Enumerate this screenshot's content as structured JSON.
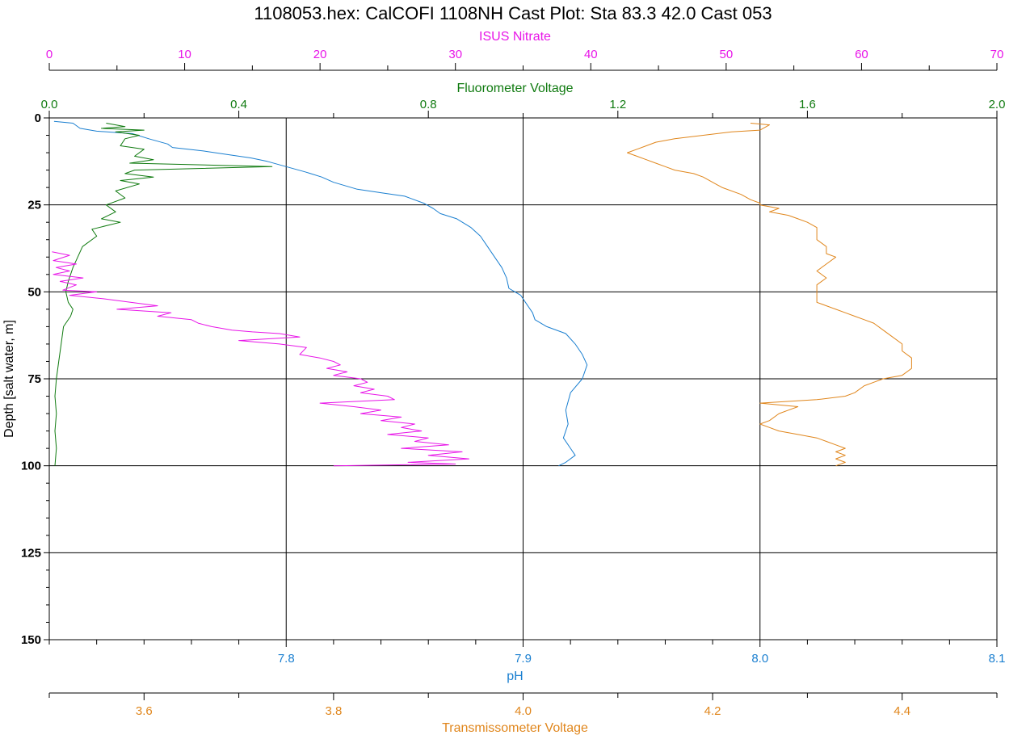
{
  "chart_data": {
    "type": "line",
    "title": "1108053.hex: CalCOFI 1108NH Cast Plot:  Sta 83.3  42.0  Cast 053",
    "y_axis": {
      "label": "Depth [salt water, m]",
      "range": [
        0,
        150
      ],
      "inverted": true,
      "ticks": [
        0,
        25,
        50,
        75,
        100,
        125,
        150
      ],
      "tick_labels": [
        "0",
        "25",
        "50",
        "75",
        "100",
        "125",
        "150"
      ],
      "gridlines": [
        25,
        50,
        75,
        100,
        125
      ]
    },
    "x_axes": [
      {
        "key": "nitrate",
        "label": "ISUS Nitrate",
        "position": "top",
        "color": "#e815e8",
        "range": [
          0,
          70
        ],
        "ticks": [
          0,
          10,
          20,
          30,
          40,
          50,
          60,
          70
        ],
        "tick_labels": [
          "0",
          "10",
          "20",
          "30",
          "40",
          "50",
          "60",
          "70"
        ]
      },
      {
        "key": "fluor",
        "label": "Fluorometer Voltage",
        "position": "top",
        "color": "#0f7a0f",
        "range": [
          0,
          2
        ],
        "ticks": [
          0,
          0.4,
          0.8,
          1.2,
          1.6,
          2.0
        ],
        "tick_labels": [
          "0.0",
          "0.4",
          "0.8",
          "1.2",
          "1.6",
          "2.0"
        ]
      },
      {
        "key": "ph",
        "label": "pH",
        "position": "bottom",
        "color": "#1a7fd0",
        "range": [
          7.7,
          8.1
        ],
        "ticks": [
          7.8,
          7.9,
          8.0,
          8.1
        ],
        "tick_labels": [
          "7.8",
          "7.9",
          "8.0",
          "8.1"
        ],
        "gridlines": [
          7.8,
          7.9,
          8.0
        ]
      },
      {
        "key": "trans",
        "label": "Transmissometer Voltage",
        "position": "bottom",
        "color": "#e0861c",
        "range": [
          3.5,
          4.5
        ],
        "ticks": [
          3.6,
          3.8,
          4.0,
          4.2,
          4.4
        ],
        "tick_labels": [
          "3.6",
          "3.8",
          "4.0",
          "4.2",
          "4.4"
        ]
      }
    ],
    "series": [
      {
        "axis": "ph",
        "color": "#1a7fd0",
        "points": [
          [
            7.702,
            1
          ],
          [
            7.71,
            1.5
          ],
          [
            7.713,
            3
          ],
          [
            7.72,
            3.8
          ],
          [
            7.735,
            4.5
          ],
          [
            7.742,
            6
          ],
          [
            7.75,
            7.5
          ],
          [
            7.752,
            8.5
          ],
          [
            7.765,
            9.5
          ],
          [
            7.775,
            10.5
          ],
          [
            7.785,
            11.5
          ],
          [
            7.792,
            12.5
          ],
          [
            7.8,
            14
          ],
          [
            7.808,
            15.5
          ],
          [
            7.815,
            17
          ],
          [
            7.82,
            18.5
          ],
          [
            7.83,
            20.5
          ],
          [
            7.84,
            21.5
          ],
          [
            7.85,
            22.5
          ],
          [
            7.858,
            24.5
          ],
          [
            7.862,
            26
          ],
          [
            7.865,
            27.5
          ],
          [
            7.872,
            29
          ],
          [
            7.878,
            31.5
          ],
          [
            7.882,
            34
          ],
          [
            7.885,
            37
          ],
          [
            7.888,
            40
          ],
          [
            7.891,
            43
          ],
          [
            7.893,
            46
          ],
          [
            7.894,
            49
          ],
          [
            7.899,
            51
          ],
          [
            7.901,
            53
          ],
          [
            7.904,
            56
          ],
          [
            7.905,
            58
          ],
          [
            7.91,
            60
          ],
          [
            7.918,
            62
          ],
          [
            7.922,
            65
          ],
          [
            7.925,
            68
          ],
          [
            7.927,
            71
          ],
          [
            7.925,
            75
          ],
          [
            7.92,
            79
          ],
          [
            7.918,
            84
          ],
          [
            7.919,
            88
          ],
          [
            7.917,
            92
          ],
          [
            7.92,
            95
          ],
          [
            7.922,
            97
          ],
          [
            7.918,
            99
          ],
          [
            7.915,
            100
          ]
        ]
      },
      {
        "axis": "fluor",
        "color": "#0f7a0f",
        "points": [
          [
            0.12,
            1.5
          ],
          [
            0.16,
            2.5
          ],
          [
            0.11,
            3
          ],
          [
            0.2,
            3.5
          ],
          [
            0.14,
            4
          ],
          [
            0.19,
            5
          ],
          [
            0.16,
            6
          ],
          [
            0.15,
            8
          ],
          [
            0.2,
            9
          ],
          [
            0.18,
            11
          ],
          [
            0.22,
            12
          ],
          [
            0.17,
            13
          ],
          [
            0.47,
            14
          ],
          [
            0.18,
            15
          ],
          [
            0.16,
            16
          ],
          [
            0.22,
            17
          ],
          [
            0.15,
            18
          ],
          [
            0.19,
            19
          ],
          [
            0.14,
            21
          ],
          [
            0.16,
            23
          ],
          [
            0.12,
            25
          ],
          [
            0.14,
            27
          ],
          [
            0.11,
            29
          ],
          [
            0.15,
            30
          ],
          [
            0.09,
            32
          ],
          [
            0.1,
            34
          ],
          [
            0.07,
            37
          ],
          [
            0.06,
            40
          ],
          [
            0.05,
            43
          ],
          [
            0.04,
            47
          ],
          [
            0.035,
            50
          ],
          [
            0.04,
            53
          ],
          [
            0.05,
            55
          ],
          [
            0.045,
            57
          ],
          [
            0.03,
            60
          ],
          [
            0.025,
            65
          ],
          [
            0.02,
            70
          ],
          [
            0.015,
            75
          ],
          [
            0.012,
            80
          ],
          [
            0.015,
            85
          ],
          [
            0.012,
            90
          ],
          [
            0.015,
            95
          ],
          [
            0.012,
            100
          ]
        ]
      },
      {
        "axis": "nitrate",
        "color": "#e815e8",
        "points": [
          [
            0.2,
            38.5
          ],
          [
            1.5,
            39.5
          ],
          [
            0.3,
            41
          ],
          [
            2.0,
            42
          ],
          [
            0.5,
            43
          ],
          [
            1.5,
            44
          ],
          [
            0.3,
            45
          ],
          [
            2.5,
            46
          ],
          [
            0.8,
            47
          ],
          [
            2.0,
            48
          ],
          [
            1.0,
            49.5
          ],
          [
            3.5,
            50
          ],
          [
            1.5,
            51
          ],
          [
            4.0,
            52
          ],
          [
            6.0,
            53
          ],
          [
            8.0,
            54
          ],
          [
            5.0,
            55
          ],
          [
            9.0,
            56
          ],
          [
            8.0,
            57
          ],
          [
            10.5,
            58
          ],
          [
            11.0,
            59
          ],
          [
            12.0,
            60
          ],
          [
            13.5,
            61
          ],
          [
            15.0,
            61.5
          ],
          [
            17.0,
            62
          ],
          [
            18.5,
            63
          ],
          [
            14.0,
            64
          ],
          [
            17.0,
            65
          ],
          [
            19.0,
            66
          ],
          [
            18.5,
            68
          ],
          [
            20.0,
            69
          ],
          [
            21.0,
            70
          ],
          [
            21.5,
            71
          ],
          [
            20.5,
            72
          ],
          [
            22.0,
            73
          ],
          [
            21.0,
            74
          ],
          [
            23.0,
            75
          ],
          [
            23.5,
            76
          ],
          [
            22.5,
            77
          ],
          [
            24.0,
            78
          ],
          [
            23.0,
            79
          ],
          [
            25.0,
            80
          ],
          [
            25.5,
            81
          ],
          [
            20.0,
            82
          ],
          [
            22.5,
            83
          ],
          [
            24.5,
            84
          ],
          [
            23.0,
            85
          ],
          [
            26.0,
            86
          ],
          [
            24.5,
            87
          ],
          [
            27.0,
            88
          ],
          [
            26.0,
            89
          ],
          [
            27.5,
            90
          ],
          [
            25.0,
            91
          ],
          [
            28.0,
            92
          ],
          [
            27.0,
            93
          ],
          [
            29.5,
            94
          ],
          [
            26.0,
            95
          ],
          [
            30.5,
            96
          ],
          [
            28.0,
            97
          ],
          [
            31.0,
            98
          ],
          [
            26.5,
            99
          ],
          [
            30.0,
            99.5
          ],
          [
            21.0,
            100
          ]
        ]
      },
      {
        "axis": "trans",
        "color": "#e0861c",
        "points": [
          [
            4.24,
            1.5
          ],
          [
            4.26,
            2
          ],
          [
            4.25,
            3.5
          ],
          [
            4.22,
            4
          ],
          [
            4.19,
            5
          ],
          [
            4.16,
            6
          ],
          [
            4.14,
            7
          ],
          [
            4.13,
            8
          ],
          [
            4.12,
            9
          ],
          [
            4.11,
            10
          ],
          [
            4.12,
            11
          ],
          [
            4.13,
            12
          ],
          [
            4.14,
            13
          ],
          [
            4.15,
            14
          ],
          [
            4.16,
            15
          ],
          [
            4.18,
            16
          ],
          [
            4.19,
            17
          ],
          [
            4.2,
            18.5
          ],
          [
            4.21,
            20
          ],
          [
            4.23,
            22
          ],
          [
            4.24,
            23.5
          ],
          [
            4.25,
            24.5
          ],
          [
            4.25,
            25
          ],
          [
            4.27,
            26
          ],
          [
            4.26,
            27
          ],
          [
            4.28,
            28
          ],
          [
            4.29,
            29
          ],
          [
            4.3,
            30
          ],
          [
            4.31,
            31.5
          ],
          [
            4.31,
            33
          ],
          [
            4.31,
            35
          ],
          [
            4.32,
            37
          ],
          [
            4.32,
            39
          ],
          [
            4.33,
            40
          ],
          [
            4.32,
            42
          ],
          [
            4.31,
            44
          ],
          [
            4.32,
            46
          ],
          [
            4.31,
            48
          ],
          [
            4.31,
            50
          ],
          [
            4.31,
            52
          ],
          [
            4.31,
            53
          ],
          [
            4.32,
            54
          ],
          [
            4.33,
            55
          ],
          [
            4.34,
            56
          ],
          [
            4.35,
            57
          ],
          [
            4.36,
            58
          ],
          [
            4.37,
            59
          ],
          [
            4.38,
            61
          ],
          [
            4.39,
            63
          ],
          [
            4.4,
            65
          ],
          [
            4.4,
            67
          ],
          [
            4.41,
            69
          ],
          [
            4.41,
            72
          ],
          [
            4.4,
            74
          ],
          [
            4.38,
            75
          ],
          [
            4.37,
            76
          ],
          [
            4.36,
            77
          ],
          [
            4.35,
            79
          ],
          [
            4.34,
            80
          ],
          [
            4.31,
            81
          ],
          [
            4.25,
            82
          ],
          [
            4.29,
            83
          ],
          [
            4.28,
            84
          ],
          [
            4.27,
            85
          ],
          [
            4.26,
            87
          ],
          [
            4.25,
            88
          ],
          [
            4.26,
            89
          ],
          [
            4.27,
            90
          ],
          [
            4.29,
            91
          ],
          [
            4.31,
            92
          ],
          [
            4.32,
            93
          ],
          [
            4.33,
            94
          ],
          [
            4.34,
            95
          ],
          [
            4.33,
            96
          ],
          [
            4.34,
            97
          ],
          [
            4.33,
            98
          ],
          [
            4.34,
            99
          ],
          [
            4.33,
            100
          ]
        ]
      }
    ]
  }
}
